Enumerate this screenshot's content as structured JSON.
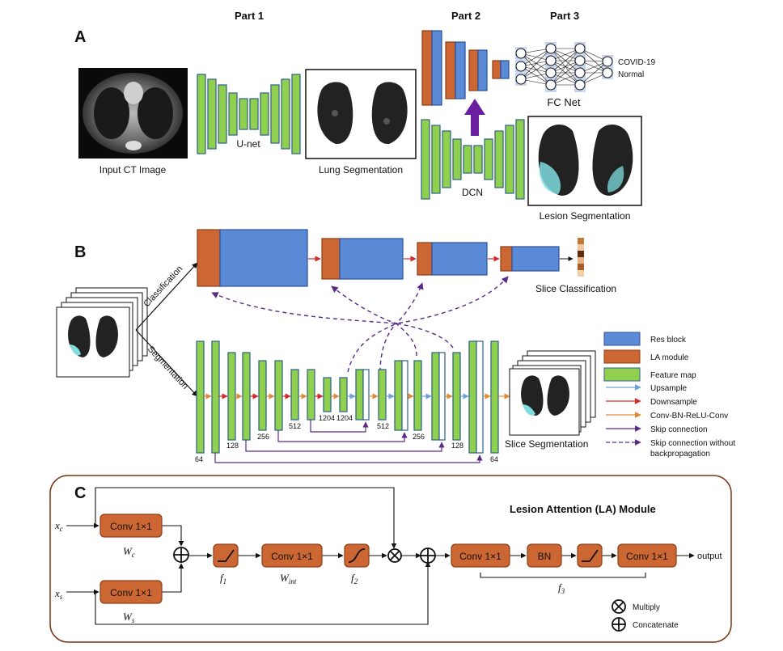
{
  "panelA": {
    "letter": "A",
    "part1": "Part 1",
    "part2": "Part 2",
    "part3": "Part 3",
    "unet": "U-net",
    "input_label": "Input CT Image",
    "lung_label": "Lung Segmentation",
    "dcn": "DCN",
    "lesion_label": "Lesion Segmentation",
    "fcnet": "FC Net",
    "out1": "COVID-19",
    "out2": "Normal"
  },
  "panelB": {
    "letter": "B",
    "classification": "Classification",
    "segmentation": "Segmentation",
    "slice_class": "Slice Classification",
    "slice_seg": "Slice Segmentation",
    "nums": [
      "64",
      "128",
      "256",
      "512",
      "1204",
      "1204",
      "512",
      "256",
      "128",
      "64"
    ],
    "legend": [
      {
        "label": "Res block",
        "swatch": "#5b8bd6"
      },
      {
        "label": "LA module",
        "swatch": "#cc6633"
      },
      {
        "label": "Feature map",
        "swatch": "#8fd14f"
      },
      {
        "label": "Upsample",
        "color": "#6fa0d8"
      },
      {
        "label": "Downsample",
        "color": "#d62b2b"
      },
      {
        "label": "Conv-BN-ReLU-Conv",
        "color": "#e08a3c"
      },
      {
        "label": "Skip connection",
        "color": "#5a2a8a"
      },
      {
        "label": "Skip connection without",
        "label2": "backpropagation",
        "color": "#5a2a8a"
      }
    ]
  },
  "panelC": {
    "letter": "C",
    "title": "Lesion Attention (LA) Module",
    "conv": "Conv 1×1",
    "bn": "BN",
    "output": "output",
    "multiply": "Multiply",
    "concatenate": "Concatenate",
    "xc": "x",
    "xc_sub": "c",
    "xs": "x",
    "xs_sub": "s",
    "wc": "W",
    "wc_sub": "c",
    "ws": "W",
    "ws_sub": "s",
    "f1": "f",
    "f1_sub": "1",
    "wint": "W",
    "wint_sub": "int",
    "f2": "f",
    "f2_sub": "2",
    "f3": "f",
    "f3_sub": "3"
  }
}
